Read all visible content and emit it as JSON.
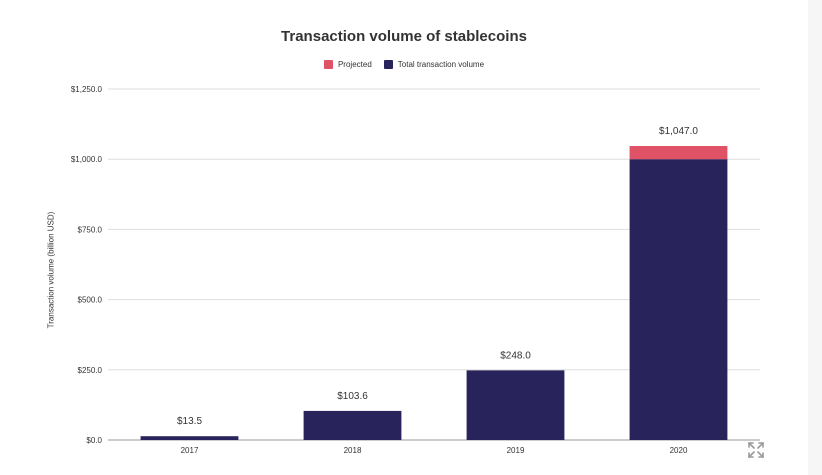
{
  "chart_data": {
    "type": "bar",
    "stacked": true,
    "title": "Transaction volume of stablecoins",
    "ylabel": "Transaction volume (billion USD)",
    "xlabel": "",
    "categories": [
      "2017",
      "2018",
      "2019",
      "2020"
    ],
    "ylim": [
      0,
      1250
    ],
    "yticks": [
      0,
      250,
      500,
      750,
      1000,
      1250
    ],
    "ytick_labels": [
      "$0.0",
      "$250.0",
      "$500.0",
      "$750.0",
      "$1,000.0",
      "$1,250.0"
    ],
    "grid": true,
    "legend_position": "top-center",
    "series": [
      {
        "name": "Total transaction volume",
        "color": "#29235c",
        "values": [
          13.5,
          103.6,
          248.0,
          1000.0
        ]
      },
      {
        "name": "Projected",
        "color": "#e05265",
        "values": [
          0,
          0,
          0,
          47.0
        ]
      }
    ],
    "legend": [
      {
        "name": "Projected",
        "color": "#e05265"
      },
      {
        "name": "Total transaction volume",
        "color": "#29235c"
      }
    ],
    "totals": [
      13.5,
      103.6,
      248.0,
      1047.0
    ],
    "total_labels": [
      "$13.5",
      "$103.6",
      "$248.0",
      "$1,047.0"
    ]
  },
  "icons": {
    "expand": "expand-icon"
  }
}
